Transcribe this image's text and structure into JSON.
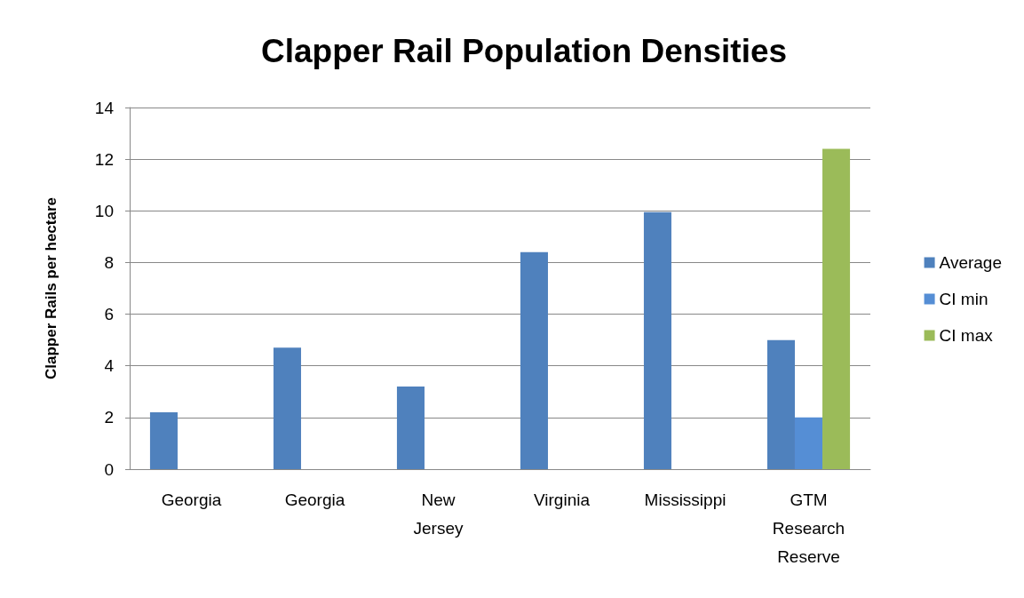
{
  "chart_data": {
    "type": "bar",
    "title": "Clapper Rail Population Densities",
    "ylabel": "Clapper Rails per hectare",
    "categories": [
      "Georgia",
      "Georgia",
      "New Jersey",
      "Virginia",
      "Mississippi",
      "GTM Research Reserve"
    ],
    "series": [
      {
        "name": "Average",
        "color": "#4f81bd",
        "values": [
          2.2,
          4.7,
          3.2,
          8.4,
          9.95,
          5.0
        ]
      },
      {
        "name": "CI min",
        "color": "#558ed5",
        "values": [
          null,
          null,
          null,
          null,
          null,
          2.0
        ]
      },
      {
        "name": "CI max",
        "color": "#9bbb59",
        "values": [
          null,
          null,
          null,
          null,
          null,
          12.4
        ]
      }
    ],
    "ylim": [
      0,
      14
    ],
    "yticks": [
      0,
      2,
      4,
      6,
      8,
      10,
      12,
      14
    ],
    "grid": "y",
    "legend": "right"
  }
}
